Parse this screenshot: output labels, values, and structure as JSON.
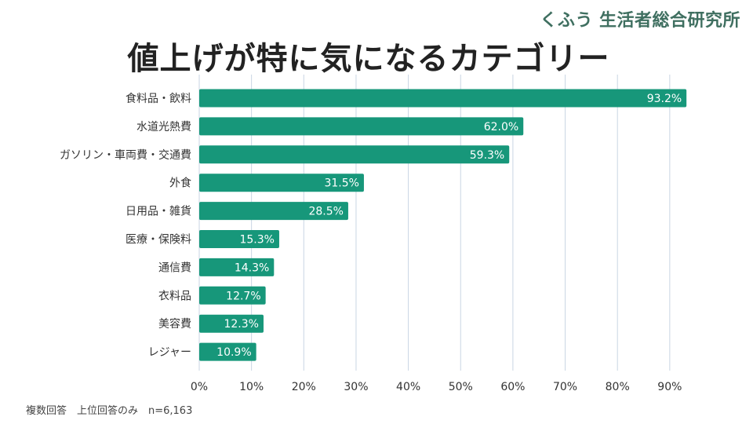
{
  "brand": "くふう 生活者総合研究所",
  "footnote": "複数回答　上位回答のみ　n=6,163",
  "colors": {
    "bar": "#17977a",
    "grid": "#c9d5e3",
    "bar_label": "#ffffff",
    "tick": "#333333"
  },
  "chart_data": {
    "type": "bar",
    "orientation": "horizontal",
    "title": "値上げが特に気になるカテゴリー",
    "categories": [
      "食料品・飲料",
      "水道光熱費",
      "ガソリン・車両費・交通費",
      "外食",
      "日用品・雑貨",
      "医療・保険料",
      "通信費",
      "衣料品",
      "美容費",
      "レジャー"
    ],
    "values": [
      93.2,
      62.0,
      59.3,
      31.5,
      28.5,
      15.3,
      14.3,
      12.7,
      12.3,
      10.9
    ],
    "value_labels": [
      "93.2%",
      "62.0%",
      "59.3%",
      "31.5%",
      "28.5%",
      "15.3%",
      "14.3%",
      "12.7%",
      "12.3%",
      "10.9%"
    ],
    "xlim": [
      0,
      90
    ],
    "xticks": [
      0,
      10,
      20,
      30,
      40,
      50,
      60,
      70,
      80,
      90
    ],
    "xtick_labels": [
      "0%",
      "10%",
      "20%",
      "30%",
      "40%",
      "50%",
      "60%",
      "70%",
      "80%",
      "90%"
    ],
    "grid": true,
    "legend": "none"
  }
}
